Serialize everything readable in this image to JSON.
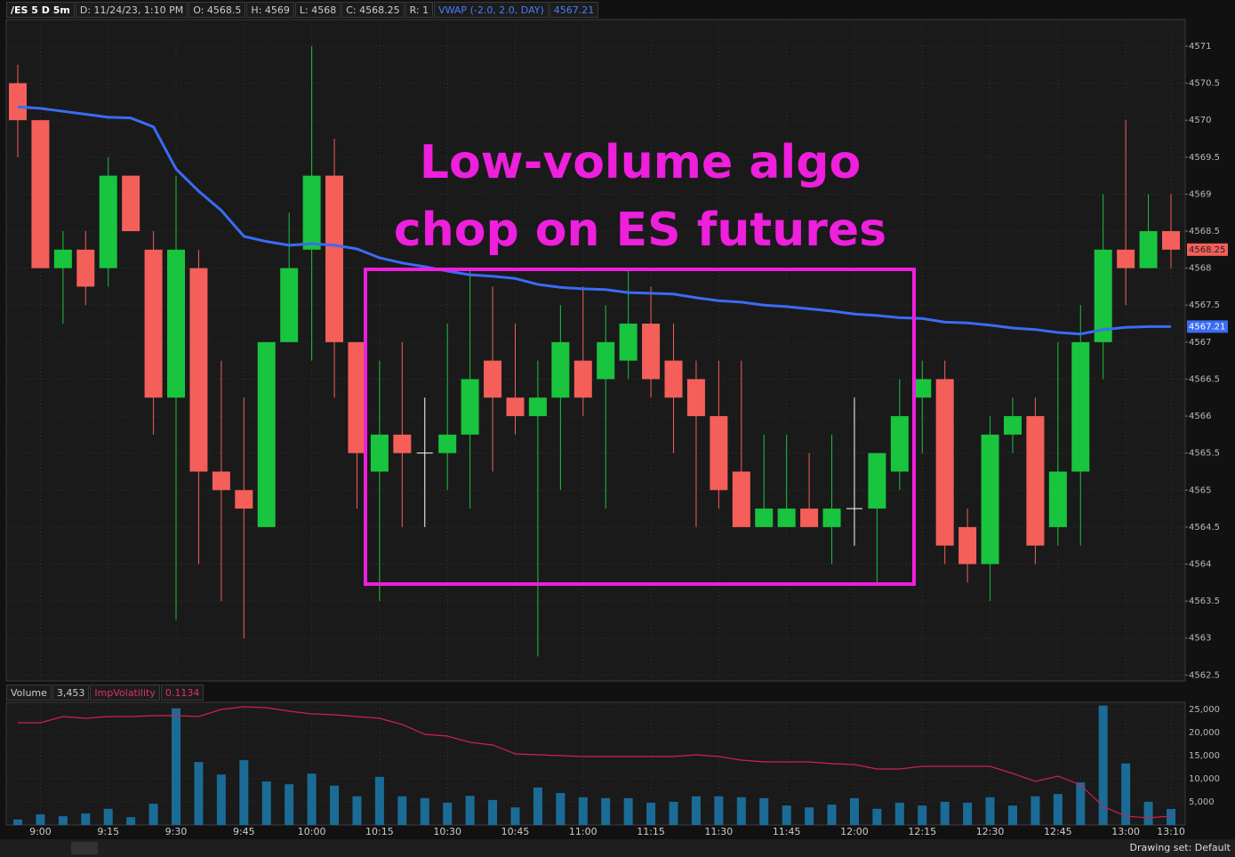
{
  "chart_data": [
    {
      "type": "candlestick",
      "title": "/ES 5 D 5m",
      "header": [
        "D: 11/24/23, 1:10 PM",
        "O: 4568.5",
        "H: 4569",
        "L: 4568",
        "C: 4568.25",
        "R: 1"
      ],
      "annotation": [
        "Low-volume algo",
        "chop on ES futures"
      ],
      "categories": [
        null,
        "9:00",
        null,
        null,
        "9:15",
        null,
        null,
        "9:30",
        null,
        null,
        "9:45",
        null,
        null,
        "10:00",
        null,
        null,
        "10:15",
        null,
        null,
        "10:30",
        null,
        null,
        "10:45",
        null,
        null,
        "11:00",
        null,
        null,
        "11:15",
        null,
        null,
        "11:30",
        null,
        null,
        "11:45",
        null,
        null,
        "12:00",
        null,
        null,
        "12:15",
        null,
        null,
        "12:30",
        null,
        null,
        "12:45",
        null,
        null,
        "13:00",
        null,
        "13:10"
      ],
      "open": [
        4570.5,
        4570,
        4568,
        4568.25,
        4568,
        4569.25,
        4568.25,
        4566.25,
        4568,
        4565.25,
        4565,
        4564.5,
        4567,
        4568.25,
        4569.25,
        4567,
        4565.25,
        4565.75,
        4565.5,
        4565.5,
        4565.75,
        4566.75,
        4566.25,
        4566,
        4566.25,
        4566.75,
        4566.5,
        4566.75,
        4567.25,
        4566.75,
        4566.5,
        4566,
        4565.25,
        4564.5,
        4564.5,
        4564.75,
        4564.5,
        4564.75,
        4564.75,
        4565.25,
        4566.25,
        4566.5,
        4564.5,
        4564,
        4565.75,
        4566,
        4564.5,
        4565.25,
        4567,
        4568.25,
        4568,
        4568.5
      ],
      "high": [
        4570.75,
        4570,
        4568.5,
        4568.5,
        4569.5,
        4569.25,
        4568.5,
        4569.25,
        4568.25,
        4566.75,
        4566.25,
        4567,
        4568.75,
        4571,
        4569.75,
        4567,
        4566.75,
        4567,
        4566.25,
        4567.25,
        4568,
        4567.75,
        4567.25,
        4566.75,
        4567.5,
        4567.75,
        4567.5,
        4568,
        4567.75,
        4567.25,
        4566.75,
        4566.75,
        4566.75,
        4565.75,
        4565.75,
        4565.5,
        4565.75,
        4566.25,
        4565.5,
        4566.5,
        4566.75,
        4566.75,
        4564.75,
        4566,
        4566.25,
        4566.25,
        4567,
        4567.5,
        4569,
        4570,
        4569,
        4569
      ],
      "low": [
        4569.5,
        4568,
        4567.25,
        4567.5,
        4567.75,
        4568.5,
        4565.75,
        4563.25,
        4564,
        4563.5,
        4563,
        4564.5,
        4567,
        4566.75,
        4566.25,
        4564.75,
        4563.5,
        4564.5,
        4564.5,
        4565,
        4564.75,
        4565.25,
        4565.75,
        4562.75,
        4565,
        4566,
        4564.75,
        4566.5,
        4566.25,
        4565.5,
        4564.5,
        4564.75,
        4564.5,
        4564.5,
        4564.5,
        4564.5,
        4564,
        4564.25,
        4563.75,
        4565,
        4565.5,
        4564,
        4563.75,
        4563.5,
        4565.5,
        4564,
        4564.25,
        4564.25,
        4566.5,
        4567.5,
        4568,
        4568
      ],
      "close": [
        4570,
        4568,
        4568.25,
        4567.75,
        4569.25,
        4568.5,
        4566.25,
        4568.25,
        4565.25,
        4565,
        4564.75,
        4567,
        4568,
        4569.25,
        4567,
        4565.5,
        4565.75,
        4565.5,
        4565.5,
        4565.75,
        4566.5,
        4566.25,
        4566,
        4566.25,
        4567,
        4566.25,
        4567,
        4567.25,
        4566.5,
        4566.25,
        4566,
        4565,
        4564.5,
        4564.75,
        4564.75,
        4564.5,
        4564.75,
        4564.75,
        4565.5,
        4566,
        4566.5,
        4564.25,
        4564,
        4565.75,
        4566,
        4564.25,
        4565.25,
        4567,
        4568.25,
        4568,
        4568.5,
        4568.25
      ],
      "up_color": "#19c43e",
      "down_color": "#f45f5a",
      "doji_color": "#ffffff",
      "series": [
        {
          "name": "VWAP (-2.0, 2.0, DAY)",
          "color": "#3a6cf4",
          "values": [
            4570.18,
            4570.16,
            4570.12,
            4570.08,
            4570.04,
            4570.03,
            4569.91,
            4569.34,
            4569.04,
            4568.78,
            4568.43,
            4568.36,
            4568.31,
            4568.33,
            4568.31,
            4568.26,
            4568.14,
            4568.07,
            4568.02,
            4567.96,
            4567.91,
            4567.89,
            4567.86,
            4567.78,
            4567.74,
            4567.72,
            4567.71,
            4567.67,
            4567.66,
            4567.65,
            4567.6,
            4567.56,
            4567.54,
            4567.5,
            4567.48,
            4567.45,
            4567.42,
            4567.38,
            4567.36,
            4567.33,
            4567.32,
            4567.27,
            4567.26,
            4567.23,
            4567.19,
            4567.17,
            4567.13,
            4567.11,
            4567.17,
            4567.2,
            4567.21,
            4567.21
          ]
        }
      ],
      "ylim": [
        4562.42,
        4571.36
      ],
      "yticks": [
        4562.5,
        4563,
        4563.5,
        4564,
        4564.5,
        4565,
        4565.5,
        4566,
        4566.5,
        4567,
        4567.5,
        4568,
        4568.5,
        4569,
        4569.5,
        4570,
        4570.5,
        4571
      ],
      "grid": true
    },
    {
      "type": "bar",
      "series": [
        {
          "name": "Volume",
          "color": "#1b6b97",
          "values": [
            1200,
            2300,
            1900,
            2500,
            3500,
            1700,
            4600,
            25200,
            13600,
            10900,
            14000,
            9400,
            8800,
            11100,
            8500,
            6200,
            10400,
            6200,
            5800,
            4800,
            6300,
            5400,
            3800,
            8100,
            6900,
            6000,
            5800,
            5800,
            4800,
            5000,
            6200,
            6200,
            6000,
            5800,
            4200,
            3800,
            4400,
            5800,
            3500,
            4800,
            4200,
            5000,
            4800,
            6000,
            4200,
            6200,
            6700,
            9200,
            25800,
            13300,
            5000,
            3453
          ],
          "value_labels": [
            null,
            null,
            null,
            null,
            null,
            null,
            null,
            null,
            null,
            null,
            null,
            null,
            null,
            null,
            null,
            null,
            null,
            null,
            null,
            null,
            null,
            null,
            null,
            null,
            null,
            null,
            null,
            null,
            null,
            null,
            null,
            null,
            null,
            null,
            null,
            null,
            null,
            null,
            null,
            null,
            null,
            null,
            null,
            null,
            null,
            null,
            null,
            null,
            null,
            null,
            null,
            "3,453"
          ]
        }
      ],
      "line": {
        "name": "ImpVolatility",
        "color": "#d0204f",
        "values": [
          0.2184,
          0.2184,
          0.2254,
          0.2234,
          0.2254,
          0.2254,
          0.2264,
          0.2264,
          0.2254,
          0.2334,
          0.2364,
          0.2354,
          0.2314,
          0.2284,
          0.2274,
          0.2254,
          0.2234,
          0.2164,
          0.2054,
          0.2034,
          0.1964,
          0.1934,
          0.1834,
          0.1824,
          0.1814,
          0.1804,
          0.1804,
          0.1804,
          0.1804,
          0.1804,
          0.1824,
          0.1804,
          0.1764,
          0.1744,
          0.1744,
          0.1744,
          0.1724,
          0.1714,
          0.1664,
          0.1664,
          0.1694,
          0.1694,
          0.1694,
          0.1694,
          0.1614,
          0.1524,
          0.1584,
          0.1484,
          0.1244,
          0.1134,
          0.1114,
          0.1134
        ]
      },
      "ylim": [
        0,
        26500
      ],
      "yticks": [
        {
          "value": 5000,
          "label": "5,000"
        },
        {
          "value": 10000,
          "label": "10,000"
        },
        {
          "value": 15000,
          "label": "15,000"
        },
        {
          "value": 20000,
          "label": "20,000"
        },
        {
          "value": 25000,
          "label": "25,000"
        }
      ],
      "grid": true
    }
  ],
  "footer": "Drawing set: Default"
}
